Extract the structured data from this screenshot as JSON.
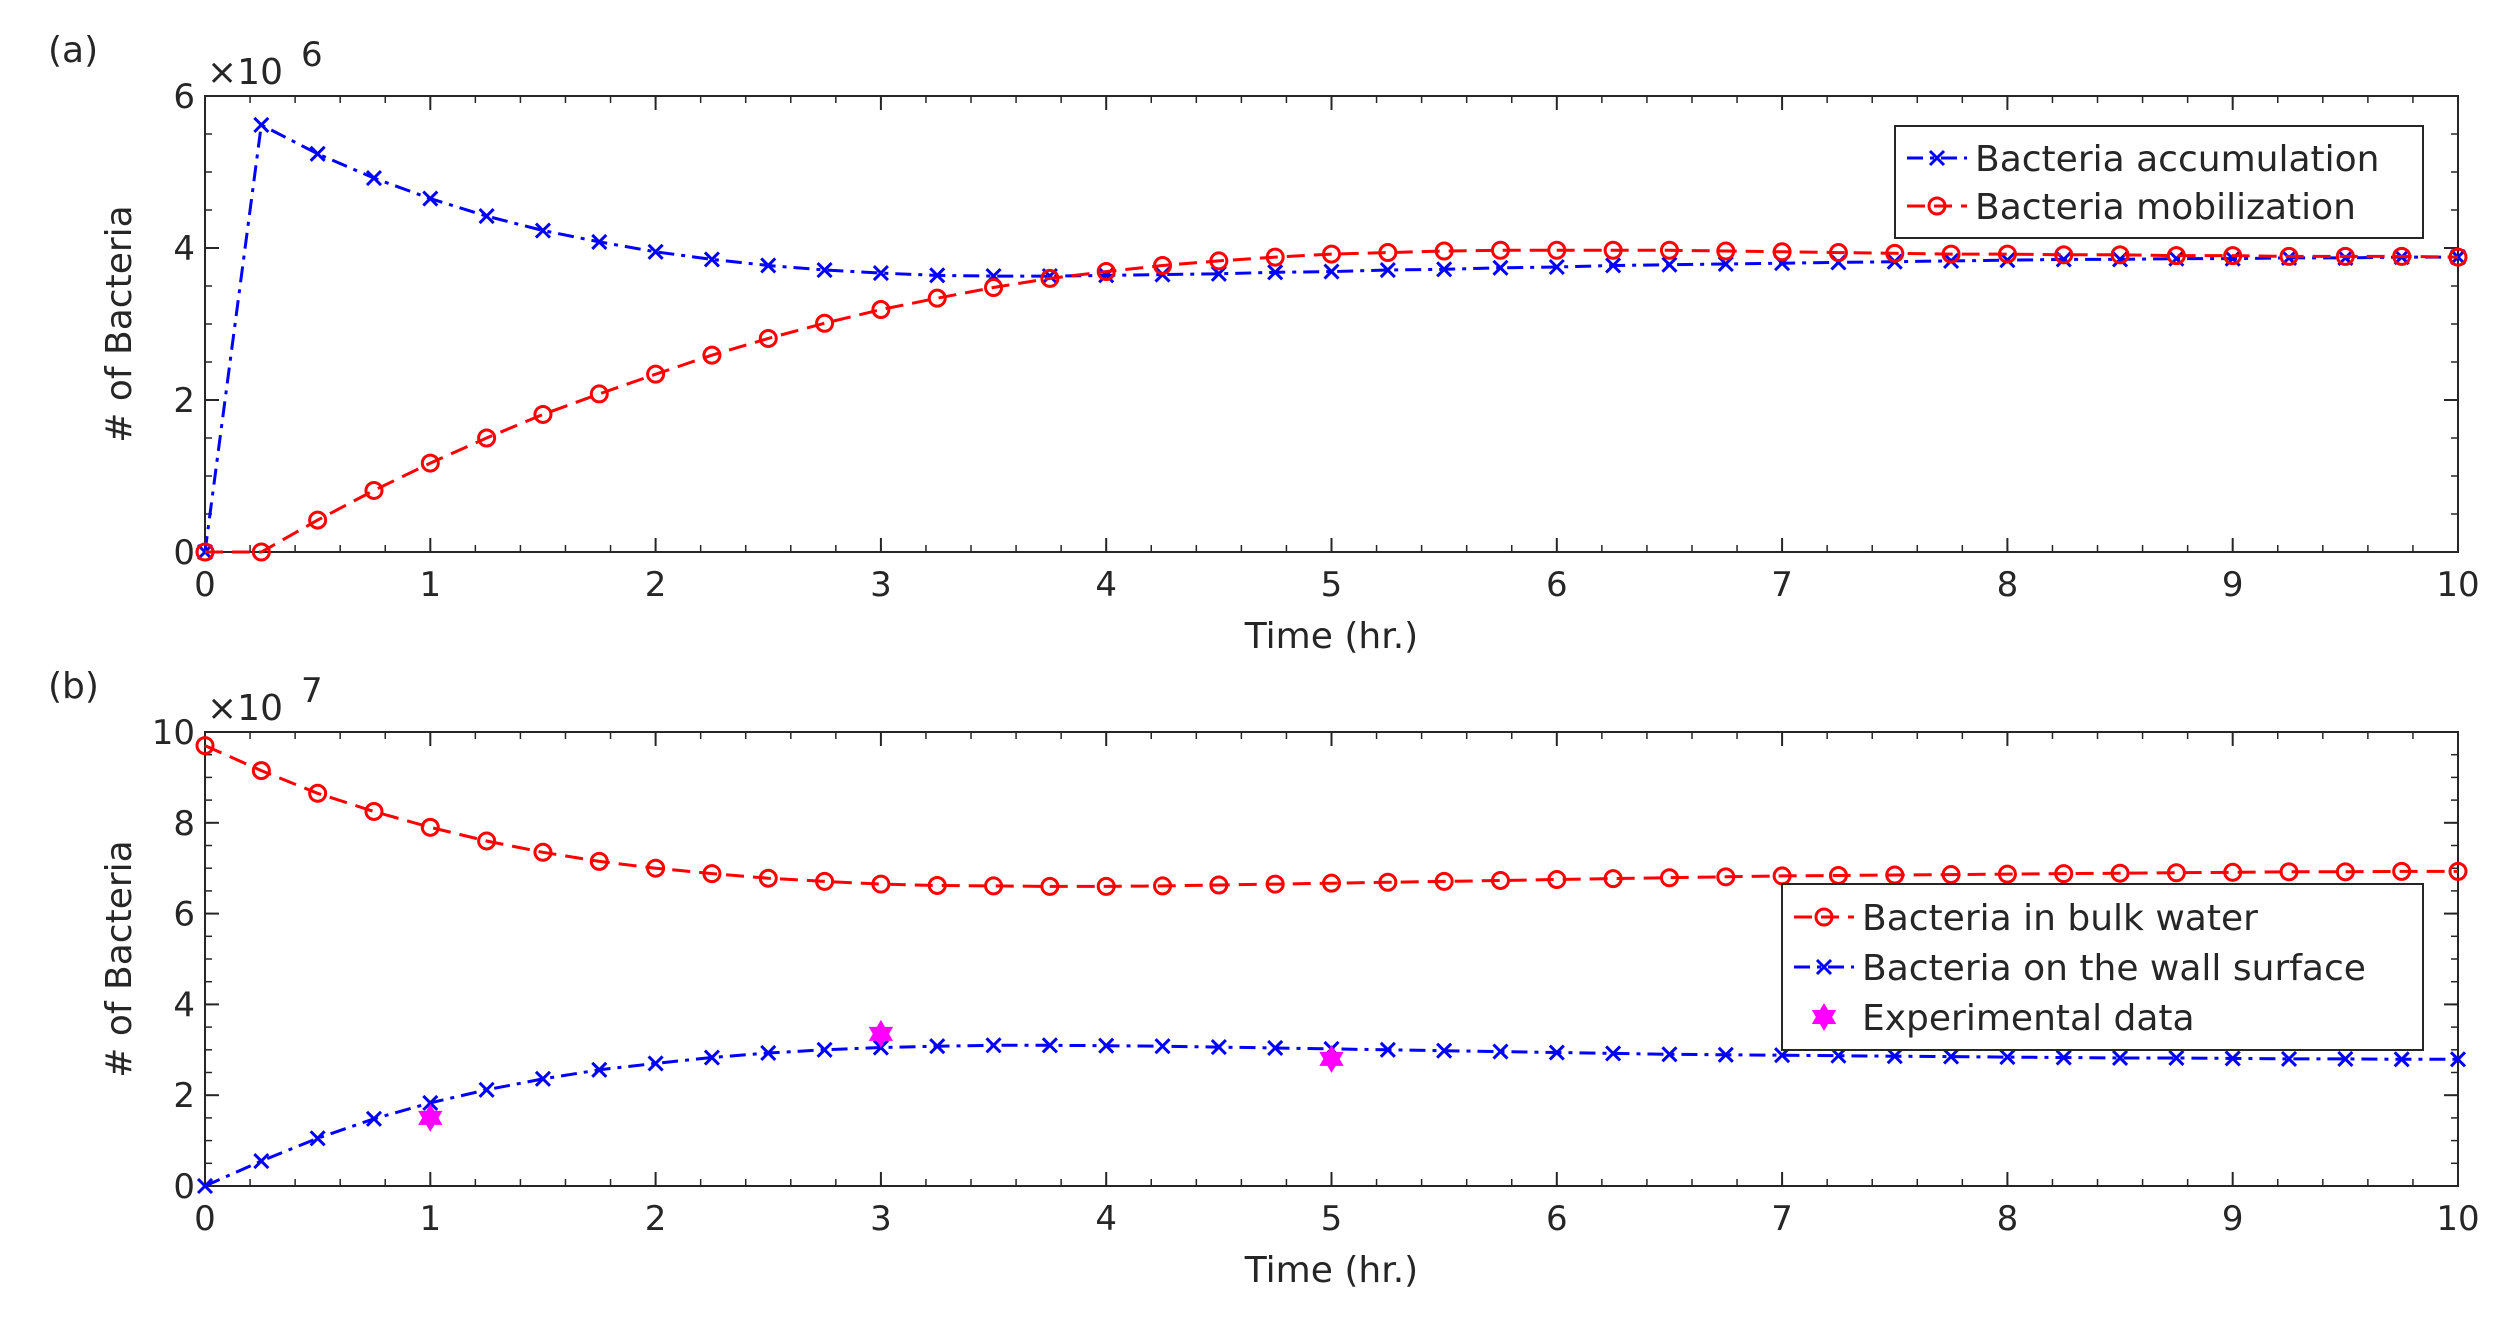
{
  "chart_data": [
    {
      "type": "line",
      "panel_label": "(a)",
      "xlabel": "Time (hr.)",
      "ylabel": "# of Bacteria",
      "xlim": [
        0,
        10
      ],
      "ylim": [
        0,
        6
      ],
      "xticks": [
        0,
        1,
        2,
        3,
        4,
        5,
        6,
        7,
        8,
        9,
        10
      ],
      "yticks": [
        0,
        2,
        4,
        6
      ],
      "y_exponent_base": "×10",
      "y_exponent_power": "6",
      "legend_position": "top-right",
      "series": [
        {
          "name": "Bacteria accumulation",
          "color": "#0000ff",
          "marker": "x",
          "linestyle": "dashdot",
          "x": [
            0,
            0.25,
            0.5,
            0.75,
            1,
            1.25,
            1.5,
            1.75,
            2,
            2.25,
            2.5,
            2.75,
            3,
            3.25,
            3.5,
            3.75,
            4,
            4.25,
            4.5,
            4.75,
            5,
            5.25,
            5.5,
            5.75,
            6,
            6.25,
            6.5,
            6.75,
            7,
            7.25,
            7.5,
            7.75,
            8,
            8.25,
            8.5,
            8.75,
            9,
            9.25,
            9.5,
            9.75,
            10
          ],
          "values": [
            0,
            5.62,
            5.24,
            4.92,
            4.65,
            4.42,
            4.23,
            4.08,
            3.95,
            3.85,
            3.77,
            3.71,
            3.67,
            3.64,
            3.63,
            3.63,
            3.64,
            3.65,
            3.66,
            3.68,
            3.69,
            3.71,
            3.72,
            3.74,
            3.75,
            3.77,
            3.78,
            3.79,
            3.8,
            3.81,
            3.82,
            3.83,
            3.84,
            3.85,
            3.85,
            3.86,
            3.86,
            3.87,
            3.87,
            3.88,
            3.88
          ]
        },
        {
          "name": "Bacteria mobilization",
          "color": "#ff0000",
          "marker": "o",
          "linestyle": "dashed",
          "x": [
            0,
            0.25,
            0.5,
            0.75,
            1,
            1.25,
            1.5,
            1.75,
            2,
            2.25,
            2.5,
            2.75,
            3,
            3.25,
            3.5,
            3.75,
            4,
            4.25,
            4.5,
            4.75,
            5,
            5.25,
            5.5,
            5.75,
            6,
            6.25,
            6.5,
            6.75,
            7,
            7.25,
            7.5,
            7.75,
            8,
            8.25,
            8.5,
            8.75,
            9,
            9.25,
            9.5,
            9.75,
            10
          ],
          "values": [
            0,
            0,
            0.42,
            0.81,
            1.17,
            1.5,
            1.81,
            2.08,
            2.34,
            2.59,
            2.81,
            3.01,
            3.19,
            3.34,
            3.48,
            3.6,
            3.69,
            3.77,
            3.83,
            3.88,
            3.92,
            3.94,
            3.96,
            3.97,
            3.97,
            3.97,
            3.97,
            3.96,
            3.95,
            3.94,
            3.93,
            3.92,
            3.92,
            3.91,
            3.91,
            3.9,
            3.9,
            3.89,
            3.89,
            3.89,
            3.88
          ]
        }
      ]
    },
    {
      "type": "line",
      "panel_label": "(b)",
      "xlabel": "Time (hr.)",
      "ylabel": "# of Bacteria",
      "xlim": [
        0,
        10
      ],
      "ylim": [
        0,
        10
      ],
      "xticks": [
        0,
        1,
        2,
        3,
        4,
        5,
        6,
        7,
        8,
        9,
        10
      ],
      "yticks": [
        0,
        2,
        4,
        6,
        8,
        10
      ],
      "y_exponent_base": "×10",
      "y_exponent_power": "7",
      "legend_position": "right",
      "series": [
        {
          "name": "Bacteria in bulk water",
          "color": "#ff0000",
          "marker": "o",
          "linestyle": "dashed",
          "x": [
            0,
            0.25,
            0.5,
            0.75,
            1,
            1.25,
            1.5,
            1.75,
            2,
            2.25,
            2.5,
            2.75,
            3,
            3.25,
            3.5,
            3.75,
            4,
            4.25,
            4.5,
            4.75,
            5,
            5.25,
            5.5,
            5.75,
            6,
            6.25,
            6.5,
            6.75,
            7,
            7.25,
            7.5,
            7.75,
            8,
            8.25,
            8.5,
            8.75,
            9,
            9.25,
            9.5,
            9.75,
            10
          ],
          "values": [
            9.7,
            9.15,
            8.65,
            8.25,
            7.9,
            7.6,
            7.35,
            7.15,
            7.0,
            6.88,
            6.78,
            6.71,
            6.65,
            6.62,
            6.61,
            6.6,
            6.6,
            6.61,
            6.63,
            6.65,
            6.67,
            6.69,
            6.71,
            6.73,
            6.75,
            6.77,
            6.79,
            6.81,
            6.83,
            6.84,
            6.85,
            6.86,
            6.87,
            6.88,
            6.89,
            6.9,
            6.91,
            6.92,
            6.92,
            6.93,
            6.93
          ]
        },
        {
          "name": "Bacteria on the wall surface",
          "color": "#0000ff",
          "marker": "x",
          "linestyle": "dashdot",
          "x": [
            0,
            0.25,
            0.5,
            0.75,
            1,
            1.25,
            1.5,
            1.75,
            2,
            2.25,
            2.5,
            2.75,
            3,
            3.25,
            3.5,
            3.75,
            4,
            4.25,
            4.5,
            4.75,
            5,
            5.25,
            5.5,
            5.75,
            6,
            6.25,
            6.5,
            6.75,
            7,
            7.25,
            7.5,
            7.75,
            8,
            8.25,
            8.5,
            8.75,
            9,
            9.25,
            9.5,
            9.75,
            10
          ],
          "values": [
            0,
            0.55,
            1.05,
            1.48,
            1.83,
            2.12,
            2.36,
            2.56,
            2.7,
            2.83,
            2.93,
            3.0,
            3.05,
            3.08,
            3.1,
            3.1,
            3.09,
            3.08,
            3.06,
            3.04,
            3.02,
            3.0,
            2.98,
            2.96,
            2.94,
            2.92,
            2.9,
            2.89,
            2.88,
            2.87,
            2.86,
            2.85,
            2.84,
            2.83,
            2.82,
            2.82,
            2.81,
            2.8,
            2.8,
            2.79,
            2.79
          ]
        },
        {
          "name": "Experimental data",
          "color": "#ff00ff",
          "marker": "hexagram",
          "linestyle": "none",
          "x": [
            1,
            3,
            5
          ],
          "values": [
            1.5,
            3.35,
            2.8
          ]
        }
      ]
    }
  ]
}
